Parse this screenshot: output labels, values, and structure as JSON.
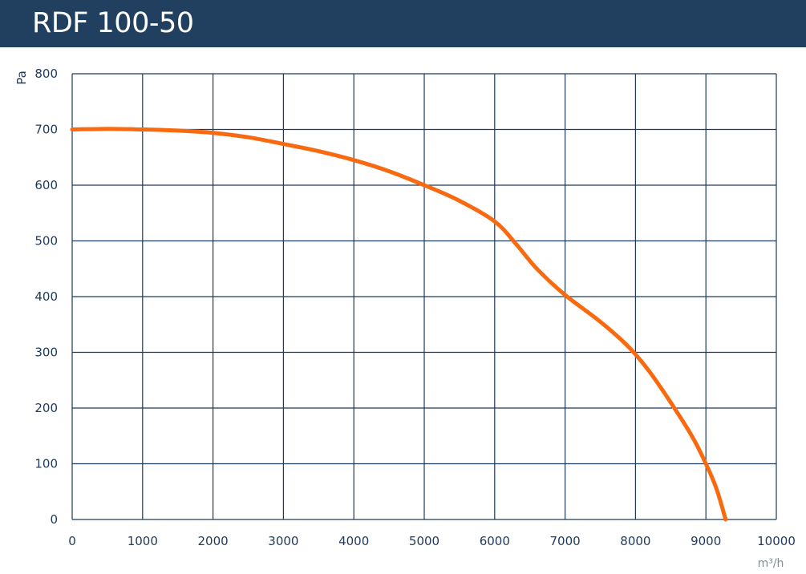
{
  "header": {
    "title": "RDF 100-50"
  },
  "chart_data": {
    "type": "line",
    "title": "RDF 100-50",
    "xlabel": "m³/h",
    "ylabel": "Pa",
    "xlim": [
      0,
      10000
    ],
    "ylim": [
      0,
      800
    ],
    "x_ticks": [
      0,
      1000,
      2000,
      3000,
      4000,
      5000,
      6000,
      7000,
      8000,
      9000,
      10000
    ],
    "y_ticks": [
      0,
      100,
      200,
      300,
      400,
      500,
      600,
      700,
      800
    ],
    "grid": true,
    "series": [
      {
        "color": "#f96a10",
        "x": [
          0,
          500,
          1000,
          1500,
          2000,
          2500,
          3000,
          3500,
          4000,
          4500,
          5000,
          5500,
          6000,
          6300,
          6600,
          7000,
          7500,
          7900,
          8200,
          8500,
          8800,
          9000,
          9150,
          9280
        ],
        "y": [
          700,
          701,
          700,
          698,
          694,
          686,
          674,
          661,
          645,
          625,
          600,
          572,
          535,
          495,
          450,
          403,
          355,
          310,
          265,
          210,
          150,
          100,
          55,
          0
        ]
      }
    ]
  },
  "colors": {
    "header": "#213f5e",
    "grid": "#1e3a5a",
    "curve": "#f96a10"
  }
}
